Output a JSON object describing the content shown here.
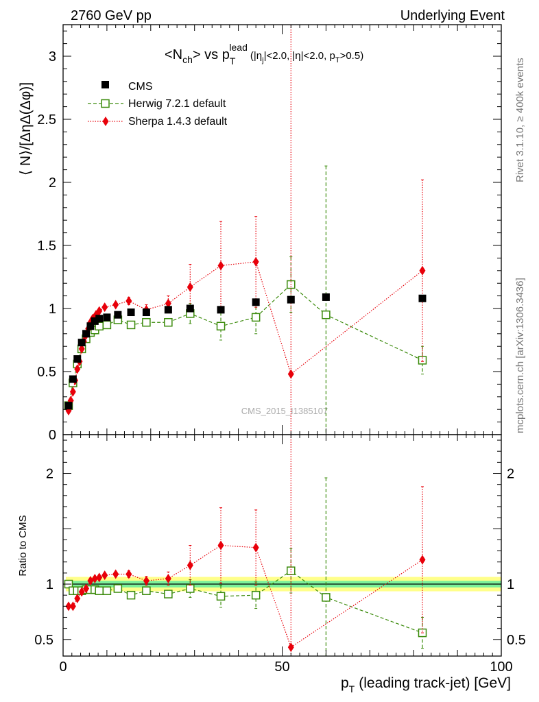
{
  "header": {
    "left": "2760 GeV pp",
    "right": "Underlying Event"
  },
  "side_labels": {
    "rivet": "Rivet 3.1.10, ≥ 400k events",
    "mcplots": "mcplots.cern.ch [arXiv:1306.3436]"
  },
  "watermark": "CMS_2015_I1385107",
  "chart_data": [
    {
      "type": "scatter",
      "title": "<N_ch> vs p_T^lead (|η_j|<2.0, |η|<2.0, p_T>0.5)",
      "title_parts": {
        "n_open": "<N",
        "n_sub": "ch",
        "vs": "> vs p",
        "p_sub": "T",
        "p_sup": "lead",
        "cuts_open": "(|η",
        "cuts_sub": "j",
        "cuts_mid": "|<2.0, |η|<2.0, p",
        "cuts_pt_sub": "T",
        "cuts_close": ">0.5)"
      },
      "ylabel": "⟨ N⟩/[ΔηΔ(Δφ)]",
      "xlim": [
        0,
        100
      ],
      "ylim": [
        0,
        3.25
      ],
      "yticks": [
        0,
        0.5,
        1,
        1.5,
        2,
        2.5,
        3
      ],
      "ytick_labels": [
        "0",
        "0.5",
        "1",
        "1.5",
        "2",
        "2.5",
        "3"
      ],
      "legend_position": "top-left",
      "series": [
        {
          "name": "CMS",
          "color": "#000000",
          "marker": "square-filled",
          "x": [
            1.25,
            2.25,
            3.25,
            4.25,
            5.25,
            6.25,
            7.25,
            8.25,
            10,
            12.5,
            15.5,
            19,
            24,
            29,
            36,
            44,
            52,
            60,
            82
          ],
          "y": [
            0.23,
            0.44,
            0.6,
            0.73,
            0.8,
            0.86,
            0.9,
            0.92,
            0.93,
            0.95,
            0.97,
            0.97,
            0.99,
            1.0,
            0.99,
            1.05,
            1.07,
            1.09,
            1.08
          ]
        },
        {
          "name": "Herwig 7.2.1 default",
          "color": "#3a8a0a",
          "marker": "square-open",
          "line": "dashed",
          "x": [
            1.25,
            2.25,
            3.25,
            4.25,
            5.25,
            6.25,
            7.25,
            8.25,
            10,
            12.5,
            15.5,
            19,
            24,
            29,
            36,
            44,
            52,
            60,
            82
          ],
          "y": [
            0.23,
            0.41,
            0.56,
            0.68,
            0.76,
            0.81,
            0.83,
            0.86,
            0.87,
            0.91,
            0.87,
            0.89,
            0.89,
            0.96,
            0.86,
            0.93,
            1.19,
            0.95,
            0.59
          ],
          "err": [
            0,
            0,
            0,
            0,
            0,
            0,
            0,
            0,
            0,
            0,
            0.02,
            0.03,
            0.03,
            0.08,
            0.11,
            0.13,
            0.22,
            1.18,
            0.11
          ]
        },
        {
          "name": "Sherpa 1.4.3 default",
          "color": "#e8000a",
          "marker": "diamond-filled",
          "line": "dotted",
          "x": [
            1.25,
            1.75,
            2.25,
            2.75,
            3.25,
            3.75,
            4.25,
            4.75,
            5.25,
            5.75,
            6.25,
            6.75,
            7.5,
            8.25,
            9.5,
            12,
            15,
            19,
            24,
            29,
            36,
            44,
            52,
            82
          ],
          "y": [
            0.19,
            0.27,
            0.34,
            0.43,
            0.52,
            0.58,
            0.68,
            0.74,
            0.79,
            0.84,
            0.89,
            0.92,
            0.95,
            0.98,
            1.01,
            1.03,
            1.06,
            0.99,
            1.04,
            1.17,
            1.34,
            1.37,
            0.48,
            1.3
          ],
          "err": [
            0,
            0,
            0,
            0,
            0,
            0,
            0,
            0,
            0,
            0,
            0,
            0,
            0,
            0,
            0.01,
            0.02,
            0.03,
            0.04,
            0.06,
            0.18,
            0.35,
            0.36,
            5,
            0.72
          ]
        }
      ]
    },
    {
      "type": "scatter",
      "ylabel": "Ratio to CMS",
      "xlabel": "p_T (leading track-jet) [GeV]",
      "xlabel_parts": {
        "p": "p",
        "p_sub": "T",
        "rest": "(leading track-jet) [GeV]"
      },
      "xlim": [
        0,
        100
      ],
      "ylim": [
        0.35,
        2.35
      ],
      "xticks": [
        0,
        50,
        100
      ],
      "xtick_labels": [
        "0",
        "50",
        "100"
      ],
      "yticks": [
        0.5,
        1,
        2
      ],
      "ytick_labels": [
        "0.5",
        "1",
        "2"
      ],
      "band": {
        "inner_halfwidth": 0.03,
        "outer_halfwidth": 0.065,
        "inner_color": "#7cf09a",
        "outer_color": "#ffff8a"
      },
      "series": [
        {
          "name": "Herwig 7.2.1 default",
          "color": "#3a8a0a",
          "marker": "square-open",
          "line": "dashed",
          "x": [
            1.25,
            2.25,
            3.25,
            4.25,
            5.25,
            6.25,
            7.25,
            8.25,
            10,
            12.5,
            15.5,
            19,
            24,
            29,
            36,
            44,
            52,
            60,
            82
          ],
          "y": [
            1.0,
            0.94,
            0.94,
            0.94,
            0.95,
            0.95,
            0.95,
            0.94,
            0.94,
            0.96,
            0.9,
            0.94,
            0.91,
            0.96,
            0.89,
            0.9,
            1.12,
            0.88,
            0.56
          ],
          "err": [
            0,
            0,
            0,
            0,
            0,
            0,
            0,
            0,
            0,
            0,
            0.02,
            0.03,
            0.03,
            0.08,
            0.1,
            0.12,
            0.2,
            1.08,
            0.14
          ]
        },
        {
          "name": "Sherpa 1.4.3 default",
          "color": "#e8000a",
          "marker": "diamond-filled",
          "line": "dotted",
          "x": [
            1.25,
            2.25,
            3.25,
            4.25,
            5.25,
            6.25,
            7.25,
            8.25,
            9.5,
            12,
            15,
            19,
            24,
            29,
            36,
            44,
            52,
            82
          ],
          "y": [
            0.8,
            0.8,
            0.87,
            0.93,
            0.96,
            1.03,
            1.05,
            1.06,
            1.08,
            1.09,
            1.09,
            1.03,
            1.05,
            1.17,
            1.35,
            1.33,
            0.43,
            1.22
          ],
          "err": [
            0,
            0,
            0,
            0,
            0,
            0.02,
            0.02,
            0.02,
            0.02,
            0.02,
            0.03,
            0.04,
            0.06,
            0.18,
            0.34,
            0.34,
            5,
            0.66
          ]
        }
      ]
    }
  ]
}
